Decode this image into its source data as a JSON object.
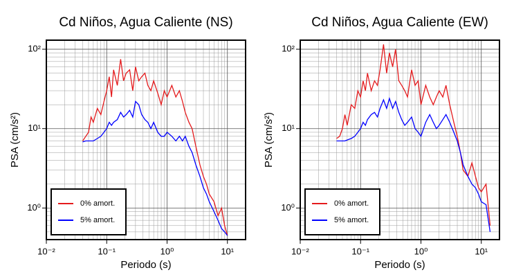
{
  "chart_data": [
    {
      "type": "line",
      "title": "Cd Niños, Agua Caliente (NS)",
      "xlabel": "Periodo (s)",
      "ylabel": "PSA (cm/s²)",
      "log_x": true,
      "log_y": true,
      "grid": true,
      "legend": "lower left",
      "xlim": [
        0.01,
        20
      ],
      "ylim": [
        0.4,
        130
      ],
      "xticks": [
        {
          "value": 0.01,
          "label": "10⁻²"
        },
        {
          "value": 0.1,
          "label": "10⁻¹"
        },
        {
          "value": 1,
          "label": "10⁰"
        },
        {
          "value": 10,
          "label": "10¹"
        }
      ],
      "yticks": [
        {
          "value": 1,
          "label": "10⁰"
        },
        {
          "value": 10,
          "label": "10¹"
        },
        {
          "value": 100,
          "label": "10²"
        }
      ],
      "x": [
        0.04,
        0.045,
        0.05,
        0.055,
        0.06,
        0.07,
        0.08,
        0.09,
        0.1,
        0.11,
        0.12,
        0.13,
        0.15,
        0.17,
        0.19,
        0.21,
        0.24,
        0.27,
        0.3,
        0.34,
        0.38,
        0.43,
        0.48,
        0.54,
        0.6,
        0.7,
        0.8,
        0.9,
        1.0,
        1.2,
        1.4,
        1.6,
        1.8,
        2.0,
        2.3,
        2.6,
        3.0,
        3.5,
        4,
        4.5,
        5,
        6,
        7,
        8,
        9,
        10
      ],
      "series": [
        {
          "name": "0% amort.",
          "color": "#e41a1c",
          "values": [
            7,
            8,
            9,
            14,
            12,
            18,
            15,
            22,
            30,
            45,
            25,
            55,
            35,
            75,
            40,
            50,
            55,
            30,
            60,
            40,
            45,
            50,
            35,
            30,
            40,
            28,
            20,
            30,
            25,
            35,
            25,
            30,
            22,
            16,
            12,
            10,
            6,
            3.5,
            2.5,
            2,
            1.5,
            1.2,
            0.8,
            1,
            0.6,
            0.45
          ]
        },
        {
          "name": "5% amort.",
          "color": "#0000ff",
          "values": [
            6.8,
            7,
            7,
            7,
            7,
            7.5,
            8,
            9,
            10,
            12,
            11,
            12,
            13,
            16,
            14,
            15,
            17,
            14,
            22,
            20,
            15,
            13,
            12,
            10,
            12,
            9,
            8,
            8,
            9,
            8,
            7,
            8,
            7,
            8,
            6,
            5,
            3.5,
            2.5,
            1.8,
            1.5,
            1.2,
            0.9,
            0.7,
            0.55,
            0.5,
            0.45
          ]
        }
      ]
    },
    {
      "type": "line",
      "title": "Cd Niños, Agua Caliente (EW)",
      "xlabel": "Periodo (s)",
      "ylabel": "PSA (cm/s²)",
      "log_x": true,
      "log_y": true,
      "grid": true,
      "legend": "lower left",
      "xlim": [
        0.01,
        20
      ],
      "ylim": [
        0.4,
        130
      ],
      "xticks": [
        {
          "value": 0.01,
          "label": "10⁻²"
        },
        {
          "value": 0.1,
          "label": "10⁻¹"
        },
        {
          "value": 1,
          "label": "10⁰"
        },
        {
          "value": 10,
          "label": "10¹"
        }
      ],
      "yticks": [
        {
          "value": 1,
          "label": "10⁰"
        },
        {
          "value": 10,
          "label": "10¹"
        },
        {
          "value": 100,
          "label": "10²"
        }
      ],
      "x": [
        0.04,
        0.045,
        0.05,
        0.055,
        0.06,
        0.07,
        0.08,
        0.09,
        0.1,
        0.11,
        0.12,
        0.13,
        0.15,
        0.17,
        0.19,
        0.21,
        0.24,
        0.27,
        0.3,
        0.34,
        0.38,
        0.43,
        0.48,
        0.54,
        0.6,
        0.7,
        0.8,
        0.9,
        1.0,
        1.2,
        1.4,
        1.6,
        1.8,
        2.0,
        2.3,
        2.6,
        3.0,
        3.5,
        4,
        4.5,
        5,
        6,
        7,
        8,
        9,
        10,
        12,
        14
      ],
      "series": [
        {
          "name": "0% amort.",
          "color": "#e41a1c",
          "values": [
            7.5,
            8,
            10,
            15,
            11,
            20,
            18,
            30,
            25,
            40,
            30,
            50,
            30,
            40,
            35,
            55,
            115,
            50,
            90,
            60,
            100,
            40,
            35,
            30,
            25,
            55,
            35,
            40,
            20,
            35,
            25,
            20,
            25,
            30,
            25,
            35,
            20,
            12,
            8,
            5,
            3,
            2.5,
            3.7,
            2.5,
            1.8,
            1.6,
            2,
            0.6
          ]
        },
        {
          "name": "5% amort.",
          "color": "#0000ff",
          "values": [
            7,
            7,
            7,
            7,
            7.2,
            7.5,
            8,
            9,
            10,
            12,
            11,
            13,
            15,
            16,
            14,
            18,
            23,
            18,
            24,
            18,
            22,
            16,
            13,
            11,
            12,
            14,
            10,
            9,
            8,
            12,
            15,
            12,
            10,
            11,
            13,
            15,
            12,
            9,
            7,
            5,
            3.5,
            2.5,
            2,
            1.8,
            1.5,
            1.2,
            1.1,
            0.5
          ]
        }
      ]
    }
  ]
}
